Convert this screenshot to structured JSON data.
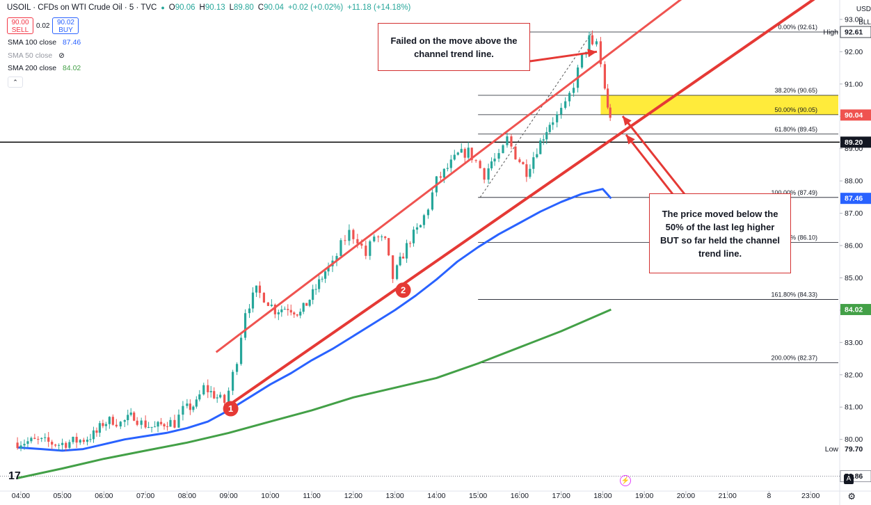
{
  "header": {
    "symbol": "USOIL · CFDs on WTI Crude Oil · 5 · TVC",
    "open_label": "O",
    "open": "90.06",
    "high_label": "H",
    "high": "90.13",
    "low_label": "L",
    "low": "89.80",
    "close_label": "C",
    "close": "90.04",
    "change": "+0.02 (+0.02%)",
    "change2": "+11.18 (+14.18%)"
  },
  "trade": {
    "sell_price": "90.00",
    "sell_label": "SELL",
    "spread": "0.02",
    "buy_price": "90.02",
    "buy_label": "BUY"
  },
  "indicators": [
    {
      "label": "SMA 100 close",
      "value": "87.46"
    },
    {
      "label": "SMA 50 close",
      "value": ""
    },
    {
      "label": "SMA 200 close",
      "value": "84.02"
    }
  ],
  "axis": {
    "currency": "USD",
    "unit": "BLL"
  },
  "annotations": {
    "failed": "Failed on the move above the channel trend line.",
    "moved": "The price moved below the 50% of the last leg higher BUT so far held the channel trend line.",
    "marker1": "1",
    "marker2": "2"
  },
  "colors": {
    "up": "#26a69a",
    "down": "#ef5350",
    "sma100": "#2962ff",
    "sma200": "#43a047",
    "trend": "#e53935",
    "channel": "#ef5350",
    "fib_zone": "#ffeb3b"
  },
  "chart_data": {
    "type": "candlestick",
    "x_ticks": [
      "04:00",
      "05:00",
      "06:00",
      "07:00",
      "08:00",
      "09:00",
      "10:00",
      "11:00",
      "12:00",
      "13:00",
      "14:00",
      "15:00",
      "16:00",
      "17:00",
      "18:00",
      "19:00",
      "20:00",
      "21:00",
      "8",
      "23:00"
    ],
    "y_ticks": [
      "80.00",
      "81.00",
      "82.00",
      "83.00",
      "84.00",
      "85.00",
      "86.00",
      "87.00",
      "88.00",
      "89.00",
      "90.00",
      "91.00",
      "92.00",
      "93.00"
    ],
    "ylim": [
      78.4,
      93.6
    ],
    "price_labels": [
      {
        "text": "92.61",
        "value": 92.61,
        "tag": "High",
        "style": "high"
      },
      {
        "text": "90.04",
        "value": 90.04,
        "style": "current"
      },
      {
        "text": "89.20",
        "value": 89.2,
        "style": "level"
      },
      {
        "text": "87.46",
        "value": 87.46,
        "style": "sma100"
      },
      {
        "text": "84.02",
        "value": 84.02,
        "style": "sma200"
      },
      {
        "text": "79.70",
        "value": 79.7,
        "tag": "Low",
        "style": "low"
      },
      {
        "text": "78.86",
        "value": 78.86,
        "style": "prev"
      }
    ],
    "fib_levels": [
      {
        "label": "0.00% (92.61)",
        "value": 92.61
      },
      {
        "label": "38.20% (90.65)",
        "value": 90.65
      },
      {
        "label": "50.00% (90.05)",
        "value": 90.05
      },
      {
        "label": "61.80% (89.45)",
        "value": 89.45
      },
      {
        "label": "100.00% (87.49)",
        "value": 87.49
      },
      {
        "label": "127.20% (86.10)",
        "value": 86.1
      },
      {
        "label": "161.80% (84.33)",
        "value": 84.33
      },
      {
        "label": "200.00% (82.37)",
        "value": 82.37
      }
    ],
    "fib_range": {
      "start_time": 15.0,
      "end_time": 18.2
    },
    "horizontal_level": 89.2,
    "prev_close": 78.86,
    "channel_upper": [
      [
        8.7,
        82.7
      ],
      [
        21.4,
        95.1
      ]
    ],
    "channel_lower": [
      [
        9.05,
        81.1
      ],
      [
        23.5,
        94.0
      ]
    ],
    "fib_diagonal": [
      [
        15.05,
        87.49
      ],
      [
        17.75,
        92.61
      ]
    ],
    "candle_anchors": [
      [
        3.92,
        79.9
      ],
      [
        4.5,
        79.95
      ],
      [
        5.0,
        79.85
      ],
      [
        5.6,
        80.0
      ],
      [
        5.9,
        80.2
      ],
      [
        6.05,
        80.5
      ],
      [
        6.3,
        80.6
      ],
      [
        6.5,
        80.5
      ],
      [
        6.8,
        80.75
      ],
      [
        7.0,
        80.5
      ],
      [
        7.3,
        80.35
      ],
      [
        7.6,
        80.55
      ],
      [
        7.8,
        80.5
      ],
      [
        8.0,
        80.9
      ],
      [
        8.3,
        81.1
      ],
      [
        8.5,
        81.6
      ],
      [
        8.8,
        81.3
      ],
      [
        9.0,
        81.15
      ],
      [
        9.1,
        81.5
      ],
      [
        9.3,
        82.5
      ],
      [
        9.5,
        84.0
      ],
      [
        9.75,
        84.6
      ],
      [
        9.95,
        84.4
      ],
      [
        10.2,
        84.0
      ],
      [
        10.5,
        84.1
      ],
      [
        10.8,
        83.9
      ],
      [
        11.1,
        84.5
      ],
      [
        11.4,
        85.2
      ],
      [
        11.6,
        85.4
      ],
      [
        11.8,
        86.0
      ],
      [
        12.0,
        86.4
      ],
      [
        12.2,
        86.2
      ],
      [
        12.4,
        85.7
      ],
      [
        12.6,
        86.3
      ],
      [
        12.85,
        86.1
      ],
      [
        13.05,
        85.0
      ],
      [
        13.2,
        85.5
      ],
      [
        13.45,
        86.2
      ],
      [
        13.7,
        86.6
      ],
      [
        13.9,
        87.2
      ],
      [
        14.1,
        88.0
      ],
      [
        14.35,
        88.4
      ],
      [
        14.6,
        88.8
      ],
      [
        14.85,
        88.9
      ],
      [
        15.05,
        88.6
      ],
      [
        15.25,
        88.2
      ],
      [
        15.4,
        88.6
      ],
      [
        15.6,
        88.7
      ],
      [
        15.8,
        89.3
      ],
      [
        16.0,
        88.8
      ],
      [
        16.25,
        88.3
      ],
      [
        16.5,
        89.0
      ],
      [
        16.8,
        89.8
      ],
      [
        17.0,
        90.0
      ],
      [
        17.2,
        90.3
      ],
      [
        17.4,
        91.0
      ],
      [
        17.6,
        91.8
      ],
      [
        17.75,
        92.4
      ],
      [
        17.85,
        92.1
      ],
      [
        17.95,
        92.3
      ],
      [
        18.05,
        91.6
      ],
      [
        18.12,
        90.9
      ],
      [
        18.18,
        90.2
      ],
      [
        18.22,
        90.04
      ]
    ],
    "sma100": [
      [
        3.92,
        79.75
      ],
      [
        4.5,
        79.7
      ],
      [
        5.0,
        79.65
      ],
      [
        5.5,
        79.7
      ],
      [
        6.0,
        79.85
      ],
      [
        6.5,
        80.0
      ],
      [
        7.0,
        80.1
      ],
      [
        7.5,
        80.2
      ],
      [
        8.0,
        80.35
      ],
      [
        8.5,
        80.55
      ],
      [
        9.0,
        80.9
      ],
      [
        9.5,
        81.3
      ],
      [
        10.0,
        81.7
      ],
      [
        10.5,
        82.05
      ],
      [
        11.0,
        82.45
      ],
      [
        11.5,
        82.8
      ],
      [
        12.0,
        83.2
      ],
      [
        12.5,
        83.6
      ],
      [
        13.0,
        84.0
      ],
      [
        13.5,
        84.45
      ],
      [
        14.0,
        84.95
      ],
      [
        14.5,
        85.5
      ],
      [
        15.0,
        85.95
      ],
      [
        15.5,
        86.35
      ],
      [
        16.0,
        86.7
      ],
      [
        16.5,
        87.05
      ],
      [
        17.0,
        87.35
      ],
      [
        17.5,
        87.6
      ],
      [
        18.0,
        87.75
      ],
      [
        18.2,
        87.46
      ]
    ],
    "sma200": [
      [
        3.92,
        78.8
      ],
      [
        5.0,
        79.1
      ],
      [
        6.0,
        79.4
      ],
      [
        7.0,
        79.65
      ],
      [
        8.0,
        79.9
      ],
      [
        9.0,
        80.2
      ],
      [
        10.0,
        80.55
      ],
      [
        11.0,
        80.9
      ],
      [
        12.0,
        81.3
      ],
      [
        13.0,
        81.6
      ],
      [
        14.0,
        81.9
      ],
      [
        15.0,
        82.35
      ],
      [
        16.0,
        82.85
      ],
      [
        17.0,
        83.35
      ],
      [
        18.2,
        84.02
      ]
    ]
  }
}
